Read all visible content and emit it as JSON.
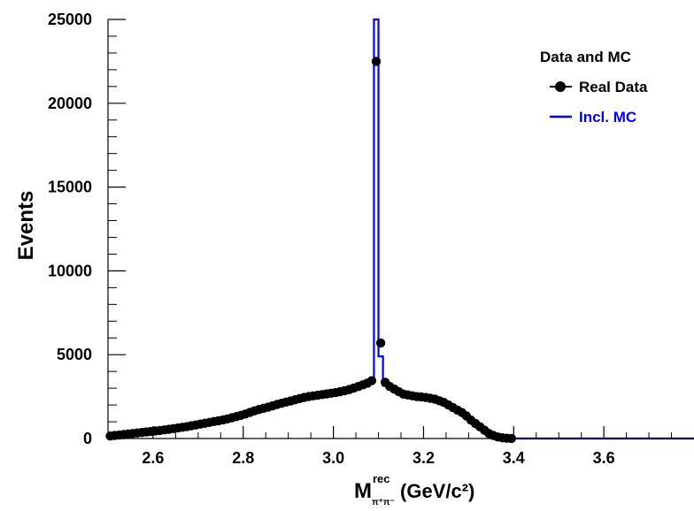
{
  "chart_data": {
    "type": "line",
    "xlabel": {
      "main": "M",
      "sup": "rec",
      "sub": "π⁺π⁻",
      "unit": "(GeV/c²)"
    },
    "ylabel": "Events",
    "xlim": [
      2.5,
      3.8
    ],
    "ylim": [
      0,
      25000
    ],
    "x_ticks": [
      2.6,
      2.8,
      3.0,
      3.2,
      3.4,
      3.6
    ],
    "x_tick_labels": [
      "2.6",
      "2.8",
      "3.0",
      "3.2",
      "3.4",
      "3.6"
    ],
    "y_ticks": [
      0,
      5000,
      10000,
      15000,
      20000,
      25000
    ],
    "y_tick_labels": [
      "0",
      "5000",
      "10000",
      "15000",
      "20000",
      "25000"
    ],
    "legend": {
      "title": "Data and MC",
      "position": "top-right",
      "entries": [
        {
          "label": "Real Data",
          "style": "marker",
          "color": "#000000"
        },
        {
          "label": "Incl. MC",
          "style": "line",
          "color": "#0000ff"
        }
      ]
    },
    "series": [
      {
        "name": "Real Data",
        "style": "points",
        "color": "#000000",
        "x": [
          2.505,
          2.515,
          2.525,
          2.535,
          2.545,
          2.555,
          2.565,
          2.575,
          2.585,
          2.595,
          2.605,
          2.615,
          2.625,
          2.635,
          2.645,
          2.655,
          2.665,
          2.675,
          2.685,
          2.695,
          2.705,
          2.715,
          2.725,
          2.735,
          2.745,
          2.755,
          2.765,
          2.775,
          2.785,
          2.795,
          2.805,
          2.815,
          2.825,
          2.835,
          2.845,
          2.855,
          2.865,
          2.875,
          2.885,
          2.895,
          2.905,
          2.915,
          2.925,
          2.935,
          2.945,
          2.955,
          2.965,
          2.975,
          2.985,
          2.995,
          3.005,
          3.015,
          3.025,
          3.035,
          3.045,
          3.055,
          3.065,
          3.075,
          3.085,
          3.095,
          3.105,
          3.115,
          3.125,
          3.135,
          3.145,
          3.155,
          3.165,
          3.175,
          3.185,
          3.195,
          3.205,
          3.215,
          3.225,
          3.235,
          3.245,
          3.255,
          3.265,
          3.275,
          3.285,
          3.295,
          3.305,
          3.315,
          3.325,
          3.335,
          3.345,
          3.355,
          3.365,
          3.375,
          3.385,
          3.395
        ],
        "y": [
          150,
          180,
          210,
          240,
          270,
          300,
          330,
          360,
          390,
          420,
          450,
          480,
          510,
          550,
          590,
          630,
          670,
          710,
          760,
          810,
          860,
          910,
          960,
          1010,
          1060,
          1110,
          1170,
          1240,
          1310,
          1380,
          1460,
          1560,
          1650,
          1730,
          1800,
          1870,
          1950,
          2030,
          2100,
          2170,
          2240,
          2310,
          2380,
          2450,
          2500,
          2540,
          2580,
          2620,
          2660,
          2700,
          2740,
          2790,
          2850,
          2920,
          3010,
          3100,
          3200,
          3300,
          3450,
          22500,
          5700,
          3350,
          3100,
          2950,
          2800,
          2650,
          2600,
          2550,
          2500,
          2480,
          2450,
          2400,
          2350,
          2250,
          2150,
          2000,
          1850,
          1700,
          1550,
          1350,
          1100,
          900,
          700,
          500,
          300,
          180,
          90,
          40,
          15,
          5
        ]
      },
      {
        "name": "Incl. MC",
        "style": "step",
        "color": "#0000ff",
        "x": [
          2.505,
          2.515,
          2.525,
          2.535,
          2.545,
          2.555,
          2.565,
          2.575,
          2.585,
          2.595,
          2.605,
          2.615,
          2.625,
          2.635,
          2.645,
          2.655,
          2.665,
          2.675,
          2.685,
          2.695,
          2.705,
          2.715,
          2.725,
          2.735,
          2.745,
          2.755,
          2.765,
          2.775,
          2.785,
          2.795,
          2.805,
          2.815,
          2.825,
          2.835,
          2.845,
          2.855,
          2.865,
          2.875,
          2.885,
          2.895,
          2.905,
          2.915,
          2.925,
          2.935,
          2.945,
          2.955,
          2.965,
          2.975,
          2.985,
          2.995,
          3.005,
          3.015,
          3.025,
          3.035,
          3.045,
          3.055,
          3.065,
          3.075,
          3.085,
          3.095,
          3.105,
          3.115,
          3.125,
          3.135,
          3.145,
          3.155,
          3.165,
          3.175,
          3.185,
          3.195,
          3.205,
          3.215,
          3.225,
          3.235,
          3.245,
          3.255,
          3.265,
          3.275,
          3.285,
          3.295,
          3.305,
          3.315,
          3.325,
          3.335,
          3.345,
          3.355,
          3.365,
          3.375,
          3.385,
          3.395,
          3.405,
          3.45,
          3.55,
          3.65,
          3.75
        ],
        "y": [
          100,
          130,
          160,
          190,
          220,
          250,
          280,
          310,
          340,
          370,
          400,
          430,
          460,
          500,
          540,
          580,
          620,
          660,
          710,
          760,
          810,
          860,
          910,
          960,
          1010,
          1060,
          1120,
          1190,
          1260,
          1330,
          1410,
          1500,
          1580,
          1660,
          1730,
          1800,
          1870,
          1940,
          2010,
          2080,
          2150,
          2220,
          2280,
          2330,
          2380,
          2420,
          2460,
          2500,
          2540,
          2580,
          2620,
          2660,
          2710,
          2770,
          2840,
          2920,
          3010,
          3110,
          3300,
          25000,
          4900,
          3150,
          2950,
          2800,
          2650,
          2550,
          2500,
          2450,
          2400,
          2380,
          2350,
          2300,
          2250,
          2150,
          2050,
          1900,
          1750,
          1600,
          1450,
          1250,
          1000,
          800,
          600,
          400,
          250,
          130,
          60,
          20,
          5,
          0,
          0,
          0,
          0,
          0,
          0
        ]
      }
    ]
  }
}
